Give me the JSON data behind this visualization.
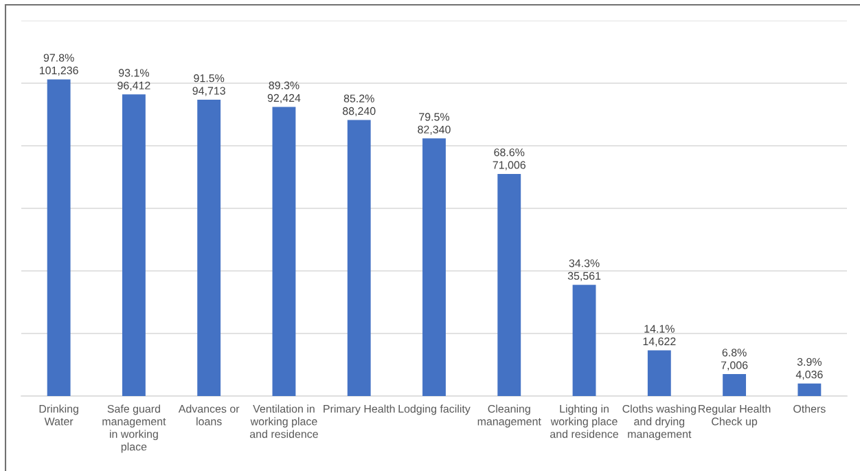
{
  "chart_data": {
    "type": "bar",
    "categories": [
      "Drinking\nWater",
      "Safe guard\nmanagement\nin working\nplace",
      "Advances or\nloans",
      "Ventilation in\nworking place\nand residence",
      "Primary Health",
      "Lodging facility",
      "Cleaning\nmanagement",
      "Lighting in\nworking place\nand residence",
      "Cloths washing\nand drying\nmanagement",
      "Regular Health\nCheck up",
      "Others"
    ],
    "values": [
      101236,
      96412,
      94713,
      92424,
      88240,
      82340,
      71006,
      35561,
      14622,
      7006,
      4036
    ],
    "value_labels": [
      "97.8%\n101,236",
      "93.1%\n96,412",
      "91.5%\n94,713",
      "89.3%\n92,424",
      "85.2%\n88,240",
      "79.5%\n82,340",
      "68.6%\n71,006",
      "34.3%\n35,561",
      "14.1%\n14,622",
      "6.8%\n7,006",
      "3.9%\n4,036"
    ],
    "color": "#4472c4",
    "ylim": [
      0,
      120000
    ],
    "yticks": [
      {
        "value": 0,
        "label": null
      },
      {
        "value": 20000,
        "label": null
      },
      {
        "value": 40000,
        "label": null
      },
      {
        "value": 60000,
        "label": null
      },
      {
        "value": 80000,
        "label": null
      },
      {
        "value": 100000,
        "label": null
      },
      {
        "value": 120000,
        "label": null
      }
    ],
    "grid": "y",
    "tick_labels": "x"
  }
}
